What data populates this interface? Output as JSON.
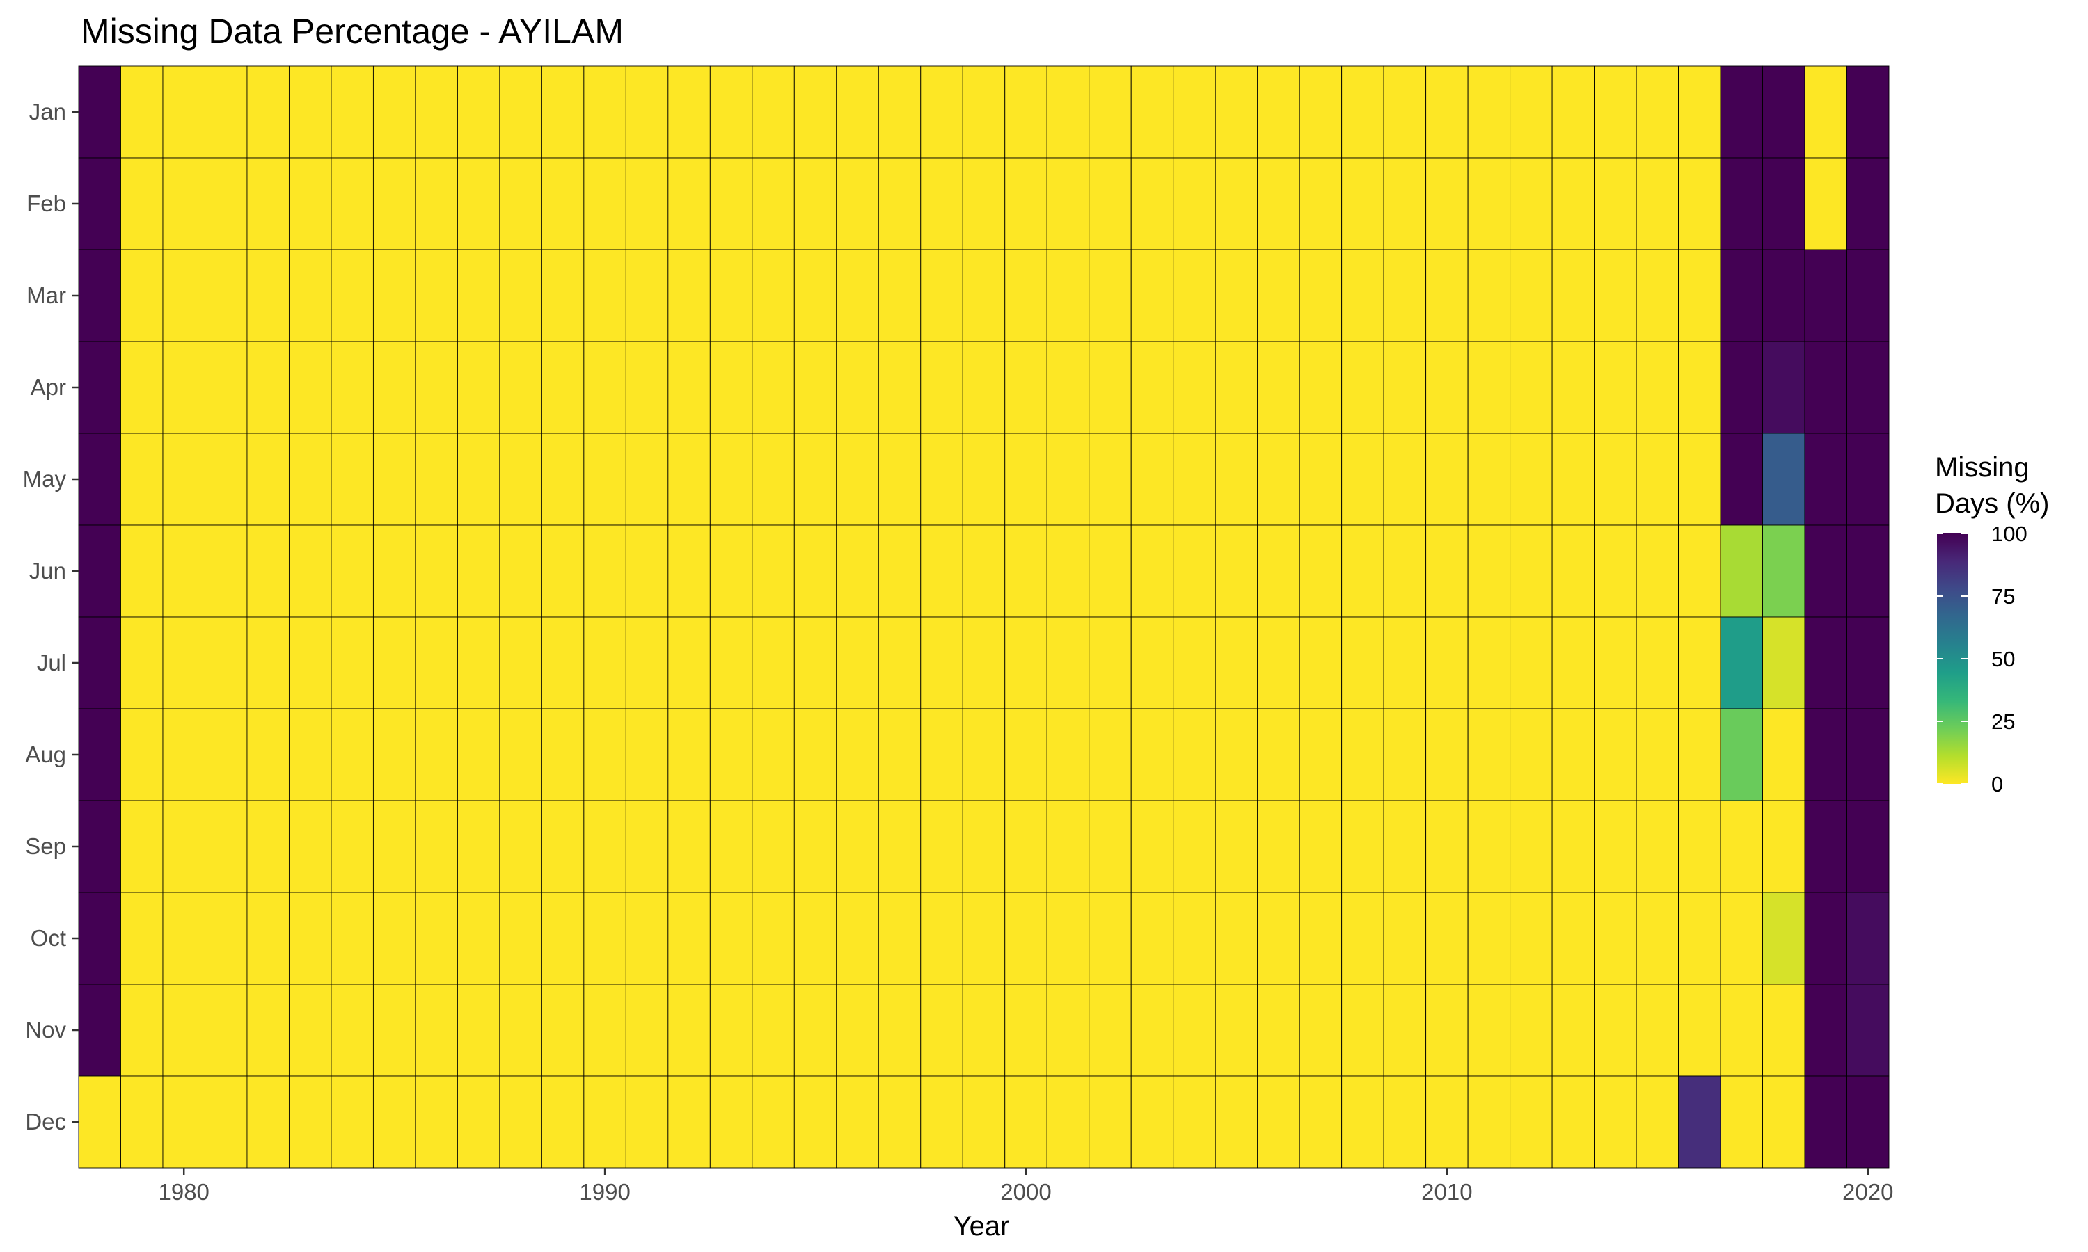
{
  "chart_data": {
    "type": "heatmap",
    "title": "Missing Data Percentage - AYILAM",
    "xlabel": "Year",
    "ylabel": "",
    "x_ticks": [
      1980,
      1990,
      2000,
      2010,
      2020
    ],
    "years": [
      1978,
      1979,
      1980,
      1981,
      1982,
      1983,
      1984,
      1985,
      1986,
      1987,
      1988,
      1989,
      1990,
      1991,
      1992,
      1993,
      1994,
      1995,
      1996,
      1997,
      1998,
      1999,
      2000,
      2001,
      2002,
      2003,
      2004,
      2005,
      2006,
      2007,
      2008,
      2009,
      2010,
      2011,
      2012,
      2013,
      2014,
      2015,
      2016,
      2017,
      2018,
      2019,
      2020
    ],
    "months": [
      "Jan",
      "Feb",
      "Mar",
      "Apr",
      "May",
      "Jun",
      "Jul",
      "Aug",
      "Sep",
      "Oct",
      "Nov",
      "Dec"
    ],
    "default_value": 0,
    "nonzero_cells": [
      {
        "year": 1978,
        "month": "Jan",
        "value": 100
      },
      {
        "year": 1978,
        "month": "Feb",
        "value": 100
      },
      {
        "year": 1978,
        "month": "Mar",
        "value": 100
      },
      {
        "year": 1978,
        "month": "Apr",
        "value": 100
      },
      {
        "year": 1978,
        "month": "May",
        "value": 100
      },
      {
        "year": 1978,
        "month": "Jun",
        "value": 100
      },
      {
        "year": 1978,
        "month": "Jul",
        "value": 100
      },
      {
        "year": 1978,
        "month": "Aug",
        "value": 100
      },
      {
        "year": 1978,
        "month": "Sep",
        "value": 100
      },
      {
        "year": 1978,
        "month": "Oct",
        "value": 100
      },
      {
        "year": 1978,
        "month": "Nov",
        "value": 100
      },
      {
        "year": 2016,
        "month": "Dec",
        "value": 87
      },
      {
        "year": 2017,
        "month": "Jan",
        "value": 100
      },
      {
        "year": 2017,
        "month": "Feb",
        "value": 100
      },
      {
        "year": 2017,
        "month": "Mar",
        "value": 100
      },
      {
        "year": 2017,
        "month": "Apr",
        "value": 100
      },
      {
        "year": 2017,
        "month": "May",
        "value": 100
      },
      {
        "year": 2017,
        "month": "Jun",
        "value": 13
      },
      {
        "year": 2017,
        "month": "Jul",
        "value": 45
      },
      {
        "year": 2017,
        "month": "Aug",
        "value": 23
      },
      {
        "year": 2018,
        "month": "Jan",
        "value": 100
      },
      {
        "year": 2018,
        "month": "Feb",
        "value": 100
      },
      {
        "year": 2018,
        "month": "Mar",
        "value": 100
      },
      {
        "year": 2018,
        "month": "Apr",
        "value": 97
      },
      {
        "year": 2018,
        "month": "May",
        "value": 71
      },
      {
        "year": 2018,
        "month": "Jun",
        "value": 20
      },
      {
        "year": 2018,
        "month": "Jul",
        "value": 6
      },
      {
        "year": 2018,
        "month": "Oct",
        "value": 6
      },
      {
        "year": 2019,
        "month": "Mar",
        "value": 100
      },
      {
        "year": 2019,
        "month": "Apr",
        "value": 100
      },
      {
        "year": 2019,
        "month": "May",
        "value": 100
      },
      {
        "year": 2019,
        "month": "Jun",
        "value": 100
      },
      {
        "year": 2019,
        "month": "Jul",
        "value": 100
      },
      {
        "year": 2019,
        "month": "Aug",
        "value": 100
      },
      {
        "year": 2019,
        "month": "Sep",
        "value": 100
      },
      {
        "year": 2019,
        "month": "Oct",
        "value": 100
      },
      {
        "year": 2019,
        "month": "Nov",
        "value": 100
      },
      {
        "year": 2019,
        "month": "Dec",
        "value": 100
      },
      {
        "year": 2020,
        "month": "Jan",
        "value": 100
      },
      {
        "year": 2020,
        "month": "Feb",
        "value": 100
      },
      {
        "year": 2020,
        "month": "Mar",
        "value": 100
      },
      {
        "year": 2020,
        "month": "Apr",
        "value": 100
      },
      {
        "year": 2020,
        "month": "May",
        "value": 100
      },
      {
        "year": 2020,
        "month": "Jun",
        "value": 100
      },
      {
        "year": 2020,
        "month": "Jul",
        "value": 100
      },
      {
        "year": 2020,
        "month": "Aug",
        "value": 100
      },
      {
        "year": 2020,
        "month": "Sep",
        "value": 100
      },
      {
        "year": 2020,
        "month": "Oct",
        "value": 97
      },
      {
        "year": 2020,
        "month": "Nov",
        "value": 97
      },
      {
        "year": 2020,
        "month": "Dec",
        "value": 100
      }
    ],
    "color_scale": {
      "name": "viridis",
      "range": [
        0,
        100
      ],
      "stops": [
        "#440154",
        "#482878",
        "#3e4a89",
        "#31688e",
        "#26828e",
        "#1f9e89",
        "#35b779",
        "#6dcd59",
        "#b4de2c",
        "#fde725"
      ]
    },
    "legend": {
      "title_line1": "Missing",
      "title_line2": "Days (%)",
      "ticks": [
        0,
        25,
        50,
        75,
        100
      ],
      "position": "right"
    },
    "cell_border_color": "#000000"
  }
}
